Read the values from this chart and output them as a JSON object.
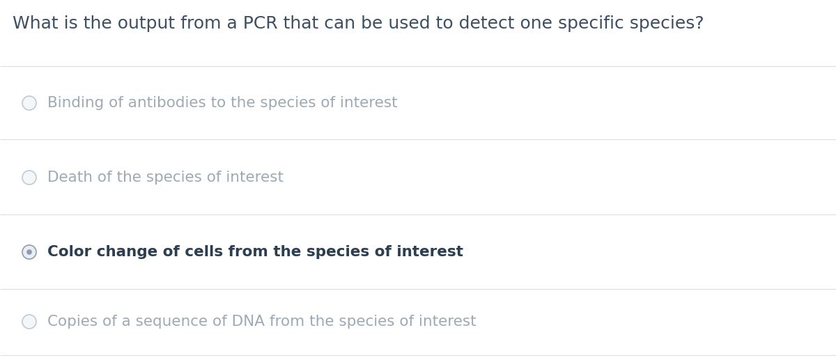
{
  "question": "What is the output from a PCR that can be used to detect one specific species?",
  "options": [
    "Binding of antibodies to the species of interest",
    "Death of the species of interest",
    "Color change of cells from the species of interest",
    "Copies of a sequence of DNA from the species of interest"
  ],
  "selected_index": 2,
  "background_color": "#ffffff",
  "question_color": "#3d4f63",
  "unselected_text_color": "#9daab6",
  "selected_text_color": "#2c3e50",
  "divider_color": "#dce1e6",
  "radio_unselected_edge": "#c0cad2",
  "radio_unselected_fill": "#f4f6f7",
  "radio_selected_fill": "#eaeef1",
  "radio_selected_dot": "#8a9db0",
  "radio_selected_edge": "#8a9db0",
  "question_fontsize": 18,
  "option_fontsize": 15.5,
  "selected_option_fontsize": 15.5,
  "fig_width": 12.0,
  "fig_height": 5.17,
  "dpi": 100
}
